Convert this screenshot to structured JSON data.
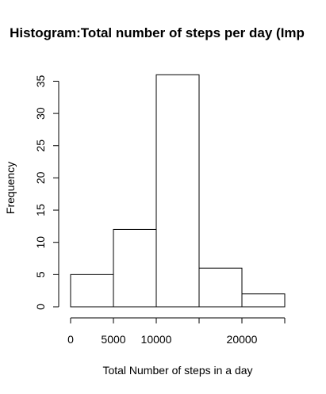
{
  "chart_data": {
    "type": "bar",
    "title": "Histogram:Total number of steps per day (Imp",
    "xlabel": "Total Number of steps in a day",
    "ylabel": "Frequency",
    "bins": [
      {
        "from": 0,
        "to": 5000,
        "count": 5
      },
      {
        "from": 5000,
        "to": 10000,
        "count": 12
      },
      {
        "from": 10000,
        "to": 15000,
        "count": 36
      },
      {
        "from": 15000,
        "to": 20000,
        "count": 6
      },
      {
        "from": 20000,
        "to": 25000,
        "count": 2
      }
    ],
    "xlim": [
      0,
      25000
    ],
    "ylim": [
      0,
      36
    ],
    "x_ticks": [
      0,
      5000,
      10000,
      15000,
      20000,
      25000
    ],
    "x_tick_labels": [
      "0",
      "5000",
      "10000",
      "",
      "20000",
      ""
    ],
    "y_ticks": [
      0,
      5,
      10,
      15,
      20,
      25,
      30,
      35
    ],
    "y_tick_labels": [
      "0",
      "5",
      "10",
      "15",
      "20",
      "25",
      "30",
      "35"
    ],
    "grid": false,
    "legend": "none",
    "bar_fill": "#ffffff",
    "bar_stroke": "#000000"
  }
}
